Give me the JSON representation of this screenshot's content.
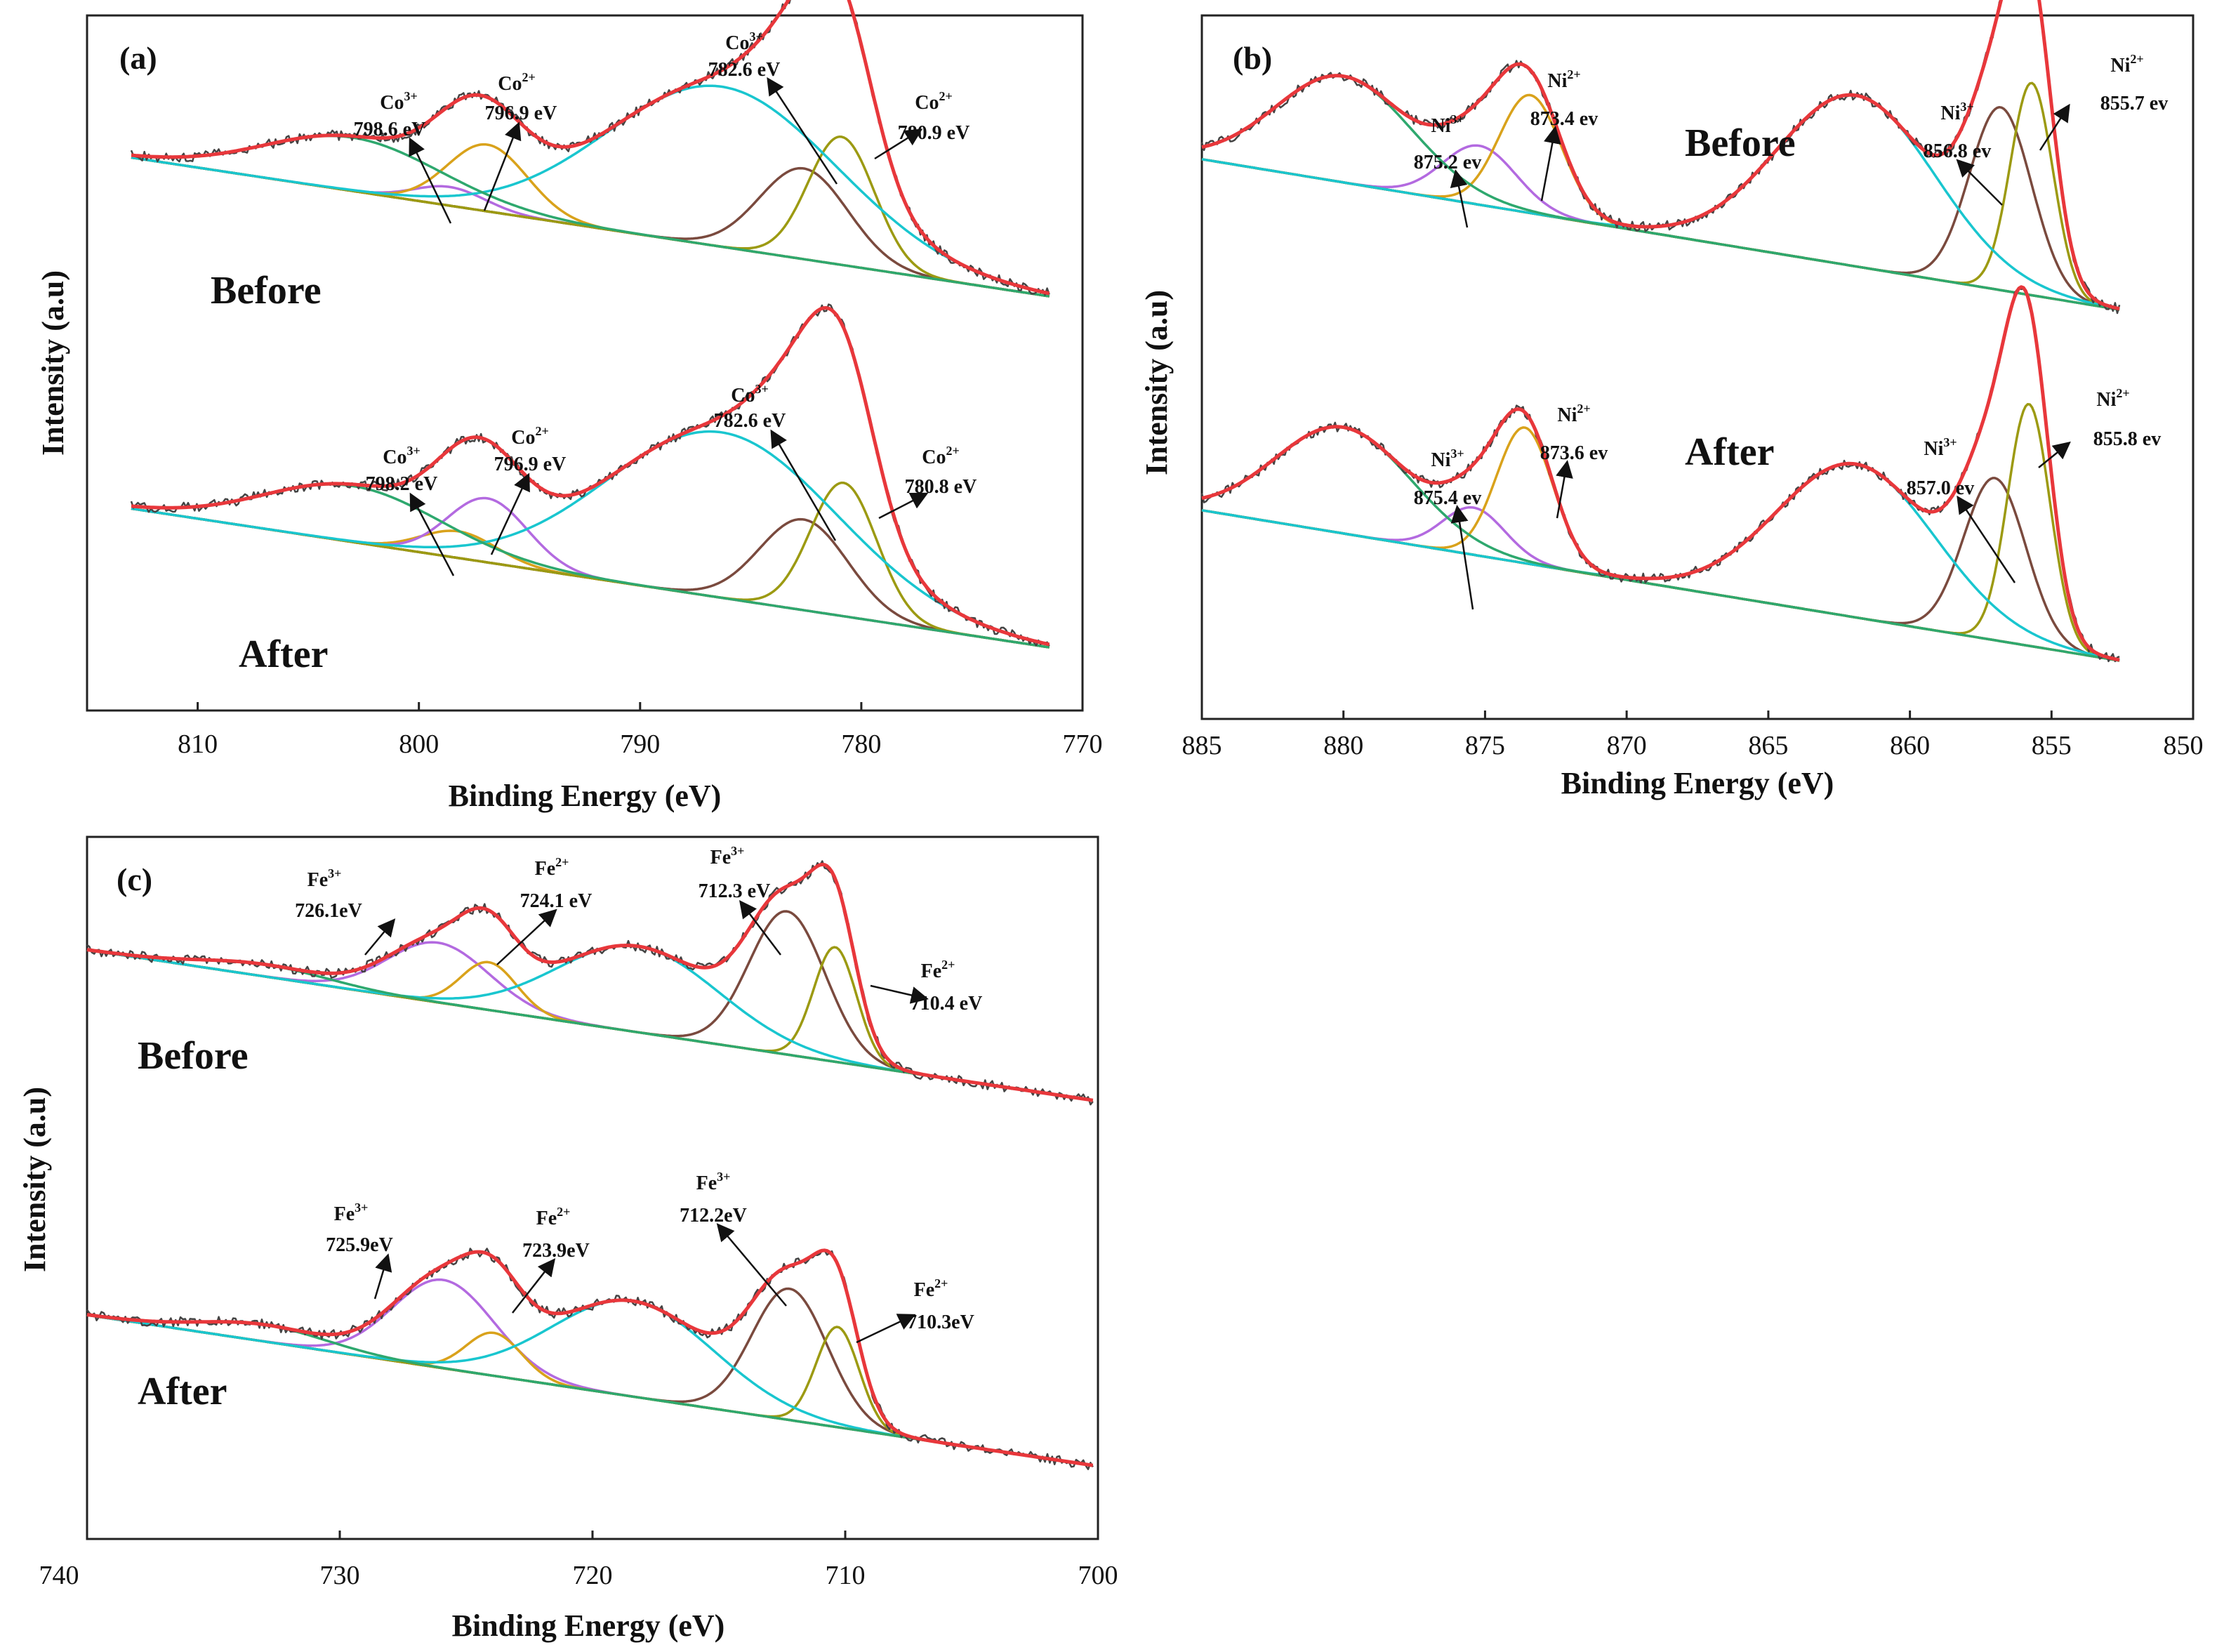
{
  "chart_data": [
    {
      "type": "line",
      "panel_label": "(a)",
      "xlabel": "Binding Energy (eV)",
      "ylabel": "Intensity (a.u)",
      "xlim": [
        815,
        770
      ],
      "xticks": [
        "810",
        "800",
        "790",
        "780",
        "770"
      ],
      "x_start": 813,
      "x_end": 771.5,
      "colors": {
        "background": "#9a9a18",
        "raw": "#444444",
        "envelope": "#e8373b"
      },
      "traces": [
        {
          "label": "Before",
          "baseline": {
            "left": 0.62,
            "right": 0.1
          },
          "peaks": [
            {
              "name": "Co3+",
              "center": 798.6,
              "height": 0.07,
              "width": 1.6,
              "color": "#b36ae0",
              "annotation": {
                "ion": "Co",
                "charge": "3+",
                "value": "798.6 eV"
              }
            },
            {
              "name": "Co2+",
              "center": 796.9,
              "height": 0.25,
              "width": 1.8,
              "color": "#d9a21b",
              "annotation": {
                "ion": "Co",
                "charge": "2+",
                "value": "796.9 eV"
              }
            },
            {
              "name": "Co3+",
              "center": 782.6,
              "height": 0.34,
              "width": 2.0,
              "color": "#7a4a3e",
              "annotation": {
                "ion": "Co",
                "charge": "3+",
                "value": "782.6 eV"
              }
            },
            {
              "name": "Co2+",
              "center": 780.9,
              "height": 0.48,
              "width": 1.5,
              "color": "#9c9a12",
              "annotation": {
                "ion": "Co",
                "charge": "2+",
                "value": "780.9 eV"
              }
            },
            {
              "name": "satellite",
              "center": 786.3,
              "height": 0.6,
              "width": 5.2,
              "color": "#19c6cf"
            },
            {
              "name": "satellite",
              "center": 803.0,
              "height": 0.2,
              "width": 4.0,
              "color": "#2ea86e"
            }
          ]
        },
        {
          "label": "After",
          "baseline": {
            "left": 0.62,
            "right": 0.1
          },
          "peaks": [
            {
              "name": "Co3+",
              "center": 798.2,
              "height": 0.1,
              "width": 1.7,
              "color": "#d9a21b",
              "annotation": {
                "ion": "Co",
                "charge": "3+",
                "value": "798.2 eV"
              }
            },
            {
              "name": "Co2+",
              "center": 796.9,
              "height": 0.24,
              "width": 1.8,
              "color": "#b36ae0",
              "annotation": {
                "ion": "Co",
                "charge": "2+",
                "value": "796.9 eV"
              }
            },
            {
              "name": "Co3+",
              "center": 782.6,
              "height": 0.34,
              "width": 2.0,
              "color": "#7a4a3e",
              "annotation": {
                "ion": "Co",
                "charge": "3+",
                "value": "782.6 eV"
              }
            },
            {
              "name": "Co2+",
              "center": 780.8,
              "height": 0.5,
              "width": 1.5,
              "color": "#9c9a12",
              "annotation": {
                "ion": "Co",
                "charge": "2+",
                "value": "780.8 eV"
              }
            },
            {
              "name": "satellite",
              "center": 786.3,
              "height": 0.62,
              "width": 5.2,
              "color": "#19c6cf"
            },
            {
              "name": "satellite",
              "center": 803.0,
              "height": 0.21,
              "width": 4.0,
              "color": "#2ea86e"
            }
          ]
        }
      ]
    },
    {
      "type": "line",
      "panel_label": "(b)",
      "xlabel": "Binding Energy (eV)",
      "ylabel": "Intensity (a.u)",
      "xlim": [
        885,
        850
      ],
      "xticks": [
        "885",
        "880",
        "875",
        "870",
        "865",
        "860",
        "855",
        "850"
      ],
      "x_start": 885,
      "x_end": 852.6,
      "colors": {
        "background": "#9a9a18",
        "raw": "#444444",
        "envelope": "#e8373b"
      },
      "traces": [
        {
          "label": "Before",
          "baseline": {
            "left": 0.56,
            "right": 0.05
          },
          "peaks": [
            {
              "name": "Ni3+",
              "center": 875.2,
              "height": 0.2,
              "width": 1.3,
              "color": "#b36ae0",
              "annotation": {
                "ion": "Ni",
                "charge": "3+",
                "value": "875.2 ev"
              }
            },
            {
              "name": "Ni2+",
              "center": 873.4,
              "height": 0.4,
              "width": 1.1,
              "color": "#d9a21b",
              "annotation": {
                "ion": "Ni",
                "charge": "2+",
                "value": "873.4 ev"
              }
            },
            {
              "name": "Ni3+",
              "center": 856.8,
              "height": 0.62,
              "width": 1.1,
              "color": "#7a4a3e",
              "annotation": {
                "ion": "Ni",
                "charge": "3+",
                "value": "856.8 ev"
              }
            },
            {
              "name": "Ni2+",
              "center": 855.7,
              "height": 0.72,
              "width": 0.75,
              "color": "#9c9a12",
              "annotation": {
                "ion": "Ni",
                "charge": "2+",
                "value": "855.7 ev"
              }
            },
            {
              "name": "satellite",
              "center": 861.9,
              "height": 0.58,
              "width": 2.8,
              "color": "#19c6cf"
            },
            {
              "name": "satellite",
              "center": 880.0,
              "height": 0.36,
              "width": 2.4,
              "color": "#2ea86e"
            }
          ]
        },
        {
          "label": "After",
          "baseline": {
            "left": 0.56,
            "right": 0.05
          },
          "peaks": [
            {
              "name": "Ni3+",
              "center": 875.4,
              "height": 0.16,
              "width": 1.1,
              "color": "#b36ae0",
              "annotation": {
                "ion": "Ni",
                "charge": "3+",
                "value": "875.4 ev"
              }
            },
            {
              "name": "Ni2+",
              "center": 873.6,
              "height": 0.46,
              "width": 1.0,
              "color": "#d9a21b",
              "annotation": {
                "ion": "Ni",
                "charge": "2+",
                "value": "873.6 ev"
              }
            },
            {
              "name": "Ni3+",
              "center": 857.0,
              "height": 0.55,
              "width": 1.1,
              "color": "#7a4a3e",
              "annotation": {
                "ion": "Ni",
                "charge": "3+",
                "value": "857.0 ev"
              }
            },
            {
              "name": "Ni2+",
              "center": 855.8,
              "height": 0.82,
              "width": 0.75,
              "color": "#9c9a12",
              "annotation": {
                "ion": "Ni",
                "charge": "2+",
                "value": "855.8 ev"
              }
            },
            {
              "name": "satellite",
              "center": 861.9,
              "height": 0.52,
              "width": 2.8,
              "color": "#19c6cf"
            },
            {
              "name": "satellite",
              "center": 880.0,
              "height": 0.36,
              "width": 2.4,
              "color": "#2ea86e"
            }
          ]
        }
      ]
    },
    {
      "type": "line",
      "panel_label": "(c)",
      "xlabel": "Binding Energy (eV)",
      "ylabel": "Intensity (a.u)",
      "xlim": [
        740,
        700
      ],
      "xticks": [
        "740",
        "730",
        "720",
        "710",
        "700"
      ],
      "x_start": 740,
      "x_end": 700.2,
      "colors": {
        "background": "#9a9a18",
        "raw": "#444444",
        "envelope": "#e8373b"
      },
      "traces": [
        {
          "label": "Before",
          "baseline": {
            "left": 0.75,
            "right": 0.12
          },
          "peaks": [
            {
              "name": "Fe3+",
              "center": 726.1,
              "height": 0.25,
              "width": 2.0,
              "color": "#b36ae0",
              "annotation": {
                "ion": "Fe",
                "charge": "3+",
                "value": "726.1eV"
              }
            },
            {
              "name": "Fe2+",
              "center": 724.1,
              "height": 0.2,
              "width": 1.1,
              "color": "#d9a21b",
              "annotation": {
                "ion": "Fe",
                "charge": "2+",
                "value": "724.1 eV"
              }
            },
            {
              "name": "Fe3+",
              "center": 712.3,
              "height": 0.6,
              "width": 1.5,
              "color": "#7a4a3e",
              "annotation": {
                "ion": "Fe",
                "charge": "3+",
                "value": "712.3 eV"
              }
            },
            {
              "name": "Fe2+",
              "center": 710.4,
              "height": 0.48,
              "width": 0.85,
              "color": "#9c9a12",
              "annotation": {
                "ion": "Fe",
                "charge": "2+",
                "value": "710.4 eV"
              }
            },
            {
              "name": "satellite",
              "center": 718.2,
              "height": 0.36,
              "width": 3.2,
              "color": "#19c6cf"
            },
            {
              "name": "satellite",
              "center": 733.0,
              "height": 0.05,
              "width": 2.5,
              "color": "#2ea86e"
            }
          ]
        },
        {
          "label": "After",
          "baseline": {
            "left": 0.75,
            "right": 0.12
          },
          "peaks": [
            {
              "name": "Fe3+",
              "center": 725.9,
              "height": 0.37,
              "width": 2.0,
              "color": "#b36ae0",
              "annotation": {
                "ion": "Fe",
                "charge": "3+",
                "value": "725.9eV"
              }
            },
            {
              "name": "Fe2+",
              "center": 723.9,
              "height": 0.18,
              "width": 1.1,
              "color": "#d9a21b",
              "annotation": {
                "ion": "Fe",
                "charge": "2+",
                "value": "723.9eV"
              }
            },
            {
              "name": "Fe3+",
              "center": 712.2,
              "height": 0.55,
              "width": 1.5,
              "color": "#7a4a3e",
              "annotation": {
                "ion": "Fe",
                "charge": "3+",
                "value": "712.2eV"
              }
            },
            {
              "name": "Fe2+",
              "center": 710.3,
              "height": 0.42,
              "width": 0.85,
              "color": "#9c9a12",
              "annotation": {
                "ion": "Fe",
                "charge": "2+",
                "value": "710.3eV"
              }
            },
            {
              "name": "satellite",
              "center": 718.4,
              "height": 0.4,
              "width": 3.2,
              "color": "#19c6cf"
            },
            {
              "name": "satellite",
              "center": 733.0,
              "height": 0.07,
              "width": 2.5,
              "color": "#2ea86e"
            }
          ]
        }
      ]
    }
  ]
}
